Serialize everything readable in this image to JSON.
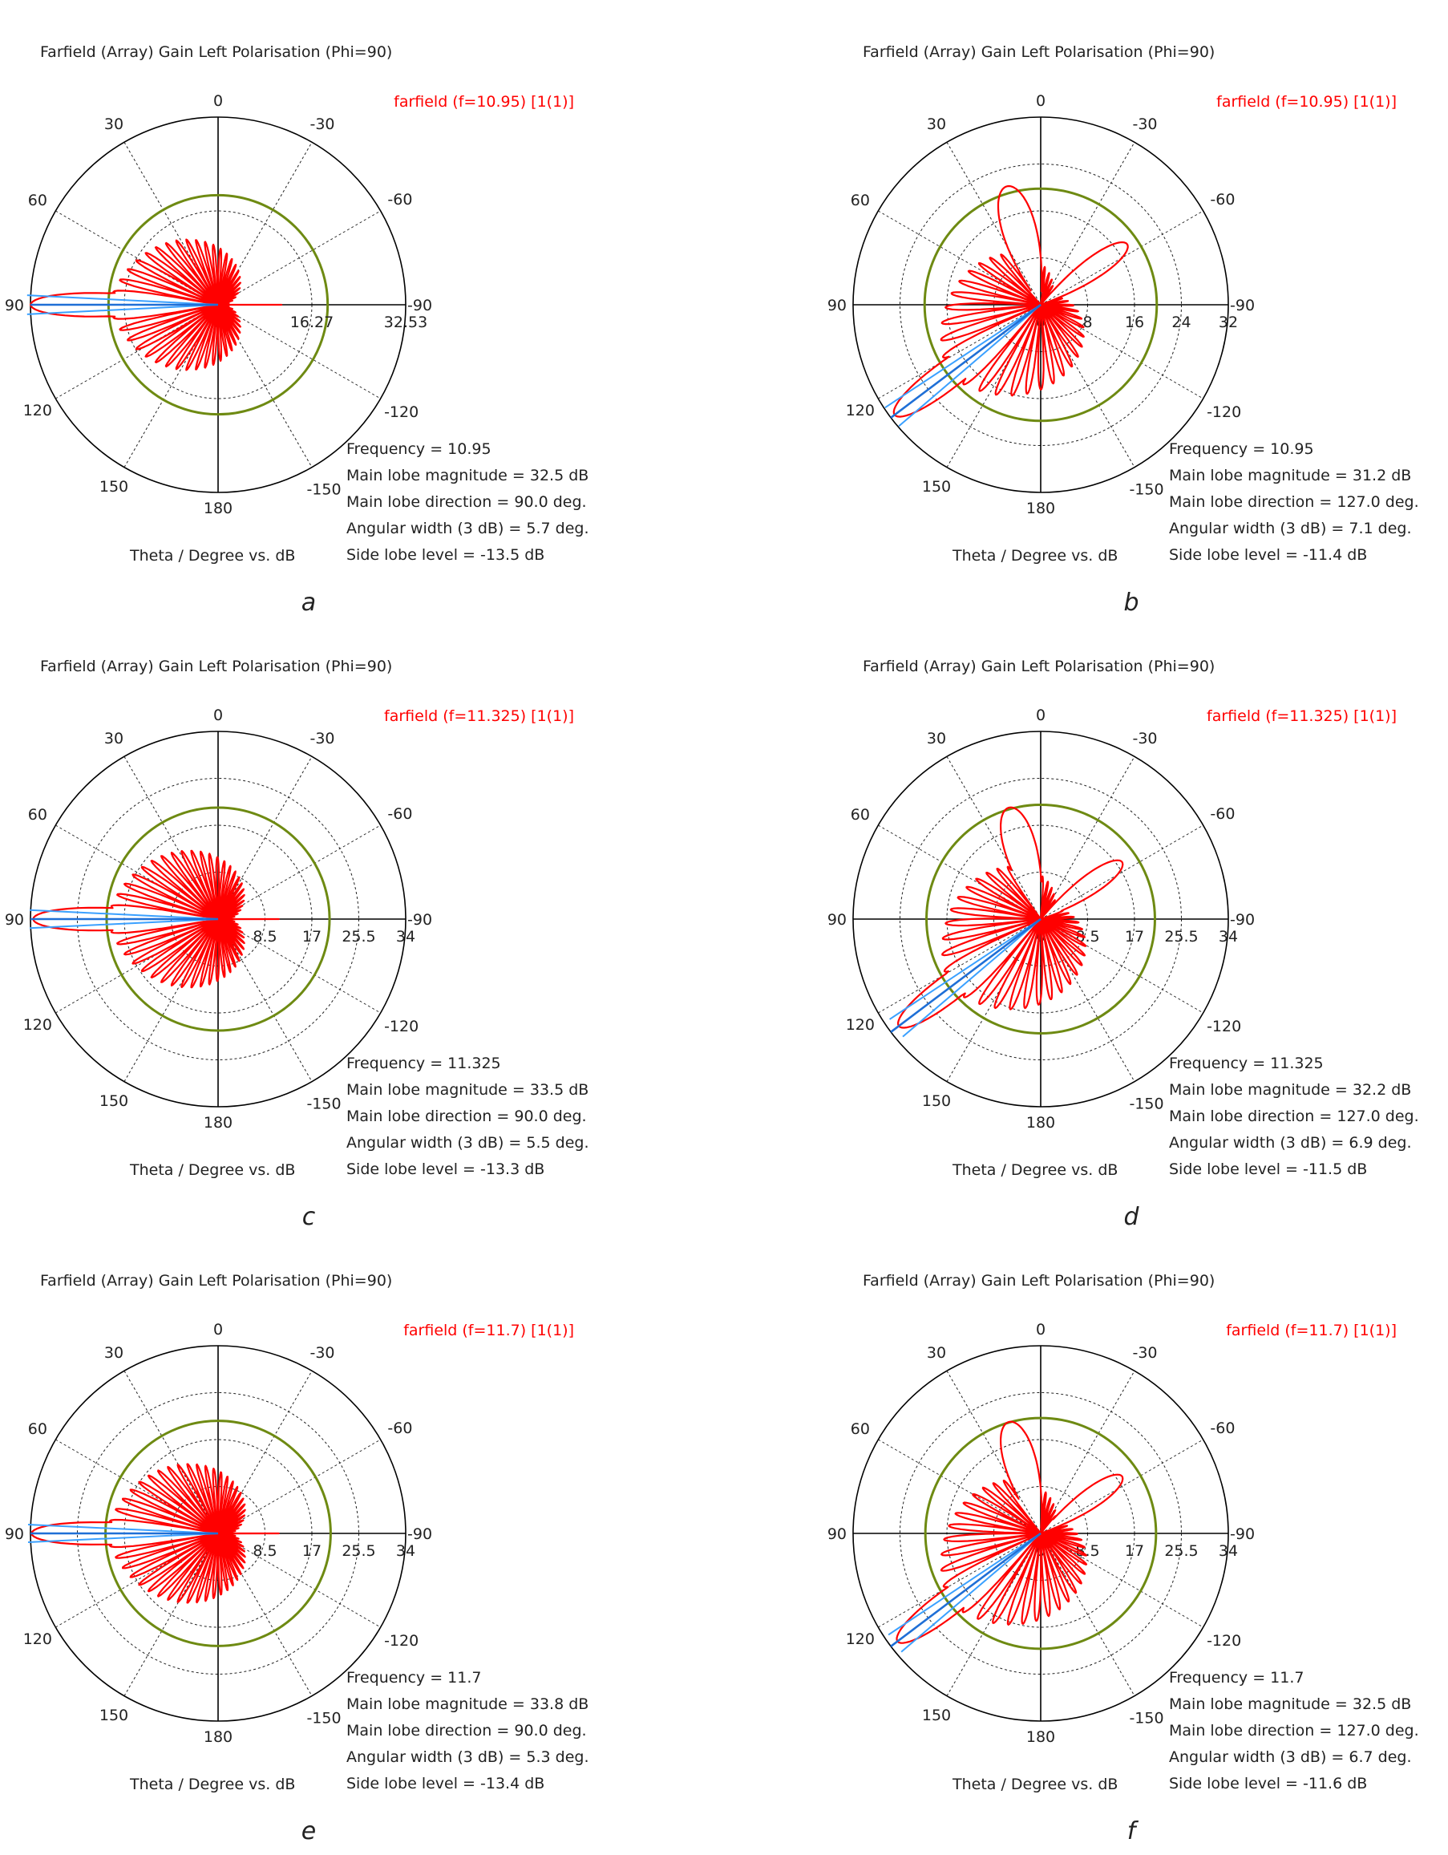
{
  "colors": {
    "pattern": "#ff0000",
    "beam": "#1f6fd6",
    "beam_edge": "#3aa0ff",
    "ring": "#6e8a12",
    "axis": "#000000"
  },
  "chart_data": [
    {
      "type": "polar",
      "panel_label": "a",
      "title": "Farfield (Array) Gain Left Polarisation (Phi=90)",
      "legend": "farfield (f=10.95) [1(1)]",
      "axis_label": "Theta / Degree vs. dB",
      "angle_ticks": [
        "0",
        "30",
        "-30",
        "60",
        "-60",
        "90",
        "-90",
        "120",
        "-120",
        "150",
        "-150",
        "180"
      ],
      "radial_ticks": [
        "0",
        "16.27",
        "32.53"
      ],
      "radial_max": 32.53,
      "info": [
        "Frequency = 10.95",
        "Main lobe magnitude = 32.5 dB",
        "Main lobe direction = 90.0 deg.",
        "Angular width (3 dB) = 5.7 deg.",
        "Side lobe level = -13.5 dB"
      ],
      "main_lobe_direction_deg": 90,
      "main_lobe_magnitude_db": 32.5,
      "beamwidth_deg": 5.7,
      "side_lobe_level_db": -13.5,
      "side_lobe_ring_db": 19.0
    },
    {
      "type": "polar",
      "panel_label": "b",
      "title": "Farfield (Array) Gain Left Polarisation (Phi=90)",
      "legend": "farfield (f=10.95) [1(1)]",
      "axis_label": "Theta / Degree vs. dB",
      "angle_ticks": [
        "0",
        "30",
        "-30",
        "60",
        "-60",
        "90",
        "-90",
        "120",
        "-120",
        "150",
        "-150",
        "180"
      ],
      "radial_ticks": [
        "0",
        "8",
        "16",
        "24",
        "32"
      ],
      "radial_max": 32,
      "info": [
        "Frequency = 10.95",
        "Main lobe magnitude = 31.2 dB",
        "Main lobe direction = 127.0 deg.",
        "Angular width (3 dB) = 7.1 deg.",
        "Side lobe level = -11.4 dB"
      ],
      "main_lobe_direction_deg": 127,
      "main_lobe_magnitude_db": 31.2,
      "beamwidth_deg": 7.1,
      "side_lobe_level_db": -11.4,
      "side_lobe_ring_db": 19.8
    },
    {
      "type": "polar",
      "panel_label": "c",
      "title": "Farfield (Array) Gain Left Polarisation (Phi=90)",
      "legend": "farfield (f=11.325) [1(1)]",
      "axis_label": "Theta / Degree vs. dB",
      "angle_ticks": [
        "0",
        "30",
        "-30",
        "60",
        "-60",
        "90",
        "-90",
        "120",
        "-120",
        "150",
        "-150",
        "180"
      ],
      "radial_ticks": [
        "0",
        "8.5",
        "17",
        "25.5",
        "34"
      ],
      "radial_max": 34,
      "info": [
        "Frequency = 11.325",
        "Main lobe magnitude = 33.5 dB",
        "Main lobe direction = 90.0 deg.",
        "Angular width (3 dB) = 5.5 deg.",
        "Side lobe level = -13.3 dB"
      ],
      "main_lobe_direction_deg": 90,
      "main_lobe_magnitude_db": 33.5,
      "beamwidth_deg": 5.5,
      "side_lobe_level_db": -13.3,
      "side_lobe_ring_db": 20.2
    },
    {
      "type": "polar",
      "panel_label": "d",
      "title": "Farfield (Array) Gain Left Polarisation (Phi=90)",
      "legend": "farfield (f=11.325) [1(1)]",
      "axis_label": "Theta / Degree vs. dB",
      "angle_ticks": [
        "0",
        "30",
        "-30",
        "60",
        "-60",
        "90",
        "-90",
        "120",
        "-120",
        "150",
        "-150",
        "180"
      ],
      "radial_ticks": [
        "0",
        "8.5",
        "17",
        "25.5",
        "34"
      ],
      "radial_max": 34,
      "info": [
        "Frequency = 11.325",
        "Main lobe magnitude = 32.2 dB",
        "Main lobe direction = 127.0 deg.",
        "Angular width (3 dB) = 6.9 deg.",
        "Side lobe level = -11.5 dB"
      ],
      "main_lobe_direction_deg": 127,
      "main_lobe_magnitude_db": 32.2,
      "beamwidth_deg": 6.9,
      "side_lobe_level_db": -11.5,
      "side_lobe_ring_db": 20.7
    },
    {
      "type": "polar",
      "panel_label": "e",
      "title": "Farfield (Array) Gain Left Polarisation (Phi=90)",
      "legend": "farfield (f=11.7) [1(1)]",
      "axis_label": "Theta / Degree vs. dB",
      "angle_ticks": [
        "0",
        "30",
        "-30",
        "60",
        "-60",
        "90",
        "-90",
        "120",
        "-120",
        "150",
        "-150",
        "180"
      ],
      "radial_ticks": [
        "0",
        "8.5",
        "17",
        "25.5",
        "34"
      ],
      "radial_max": 34,
      "info": [
        "Frequency = 11.7",
        "Main lobe magnitude = 33.8 dB",
        "Main lobe direction = 90.0 deg.",
        "Angular width (3 dB) = 5.3 deg.",
        "Side lobe level = -13.4 dB"
      ],
      "main_lobe_direction_deg": 90,
      "main_lobe_magnitude_db": 33.8,
      "beamwidth_deg": 5.3,
      "side_lobe_level_db": -13.4,
      "side_lobe_ring_db": 20.4
    },
    {
      "type": "polar",
      "panel_label": "f",
      "title": "Farfield (Array) Gain Left Polarisation (Phi=90)",
      "legend": "farfield (f=11.7) [1(1)]",
      "axis_label": "Theta / Degree vs. dB",
      "angle_ticks": [
        "0",
        "30",
        "-30",
        "60",
        "-60",
        "90",
        "-90",
        "120",
        "-120",
        "150",
        "-150",
        "180"
      ],
      "radial_ticks": [
        "0",
        "8.5",
        "17",
        "25.5",
        "34"
      ],
      "radial_max": 34,
      "info": [
        "Frequency = 11.7",
        "Main lobe magnitude = 32.5 dB",
        "Main lobe direction = 127.0 deg.",
        "Angular width (3 dB) = 6.7 deg.",
        "Side lobe level = -11.6 dB"
      ],
      "main_lobe_direction_deg": 127,
      "main_lobe_magnitude_db": 32.5,
      "beamwidth_deg": 6.7,
      "side_lobe_level_db": -11.6,
      "side_lobe_ring_db": 20.9
    }
  ]
}
